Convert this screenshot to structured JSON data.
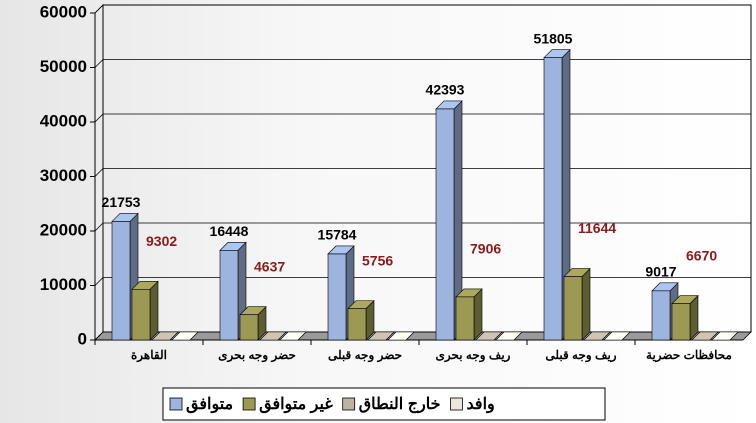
{
  "chart_data": {
    "type": "bar3d",
    "categories": [
      "القاهرة",
      "حضر وجه بحرى",
      "حضر وجه قبلى",
      "ريف وجه بحرى",
      "ريف وجه قبلى",
      "محافظات حضرية"
    ],
    "series": [
      {
        "name": "متوافق",
        "color": "#9cb4de",
        "label_color": "#000000",
        "values": [
          21753,
          16448,
          15784,
          42393,
          51805,
          9017
        ]
      },
      {
        "name": "غير متوافق",
        "color": "#9c9a52",
        "label_color": "#8b1a1a",
        "values": [
          9302,
          4637,
          5756,
          7906,
          11644,
          6670
        ]
      },
      {
        "name": "خارج النطاق",
        "color": "#bdb3a3",
        "values": [
          0,
          0,
          0,
          0,
          0,
          0
        ]
      },
      {
        "name": "وافد",
        "color": "#ebe7df",
        "values": [
          0,
          0,
          0,
          0,
          0,
          0
        ]
      }
    ],
    "ylim": [
      0,
      60000
    ],
    "yticks": [
      0,
      10000,
      20000,
      30000,
      40000,
      50000,
      60000
    ],
    "grid": true
  }
}
